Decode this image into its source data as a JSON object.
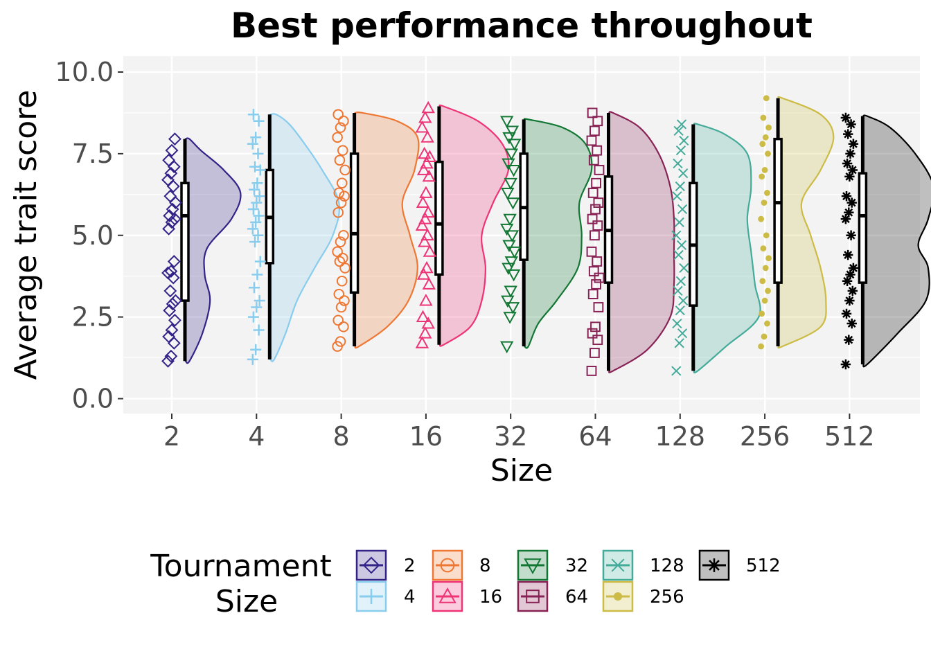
{
  "chart_data": {
    "type": "raincloud",
    "title": "Best performance throughout",
    "xlabel": "Size",
    "ylabel": "Average trait score",
    "ylim": [
      -0.4,
      10.5
    ],
    "yticks": [
      "0.0",
      "2.5",
      "5.0",
      "7.5",
      "10.0"
    ],
    "ytick_values": [
      0,
      2.5,
      5,
      7.5,
      10
    ],
    "grid": true,
    "legend": {
      "title_lines": [
        "Tournament",
        "Size"
      ],
      "placement": "bottom"
    },
    "categories": [
      "2",
      "4",
      "8",
      "16",
      "32",
      "64",
      "128",
      "256",
      "512"
    ],
    "series": [
      {
        "name": "2",
        "color": "#332288",
        "marker": "diamond",
        "min": 1.15,
        "q1": 3.0,
        "median": 5.6,
        "q3": 6.6,
        "max": 7.95,
        "density": [
          [
            1.15,
            0.05
          ],
          [
            2.0,
            0.22
          ],
          [
            3.0,
            0.32
          ],
          [
            3.8,
            0.25
          ],
          [
            4.6,
            0.28
          ],
          [
            5.5,
            0.6
          ],
          [
            6.3,
            0.72
          ],
          [
            7.0,
            0.5
          ],
          [
            7.6,
            0.2
          ],
          [
            7.95,
            0.05
          ]
        ],
        "points": [
          1.15,
          1.3,
          1.7,
          1.9,
          2.1,
          2.4,
          2.7,
          2.9,
          3.0,
          3.3,
          3.7,
          3.85,
          3.9,
          4.2,
          5.2,
          5.4,
          5.5,
          5.6,
          5.8,
          6.0,
          6.2,
          6.5,
          6.7,
          6.9,
          7.1,
          7.3,
          7.6,
          7.95
        ]
      },
      {
        "name": "4",
        "color": "#88CCEE",
        "marker": "plus",
        "min": 1.2,
        "q1": 4.15,
        "median": 5.55,
        "q3": 7.0,
        "max": 8.7,
        "density": [
          [
            1.2,
            0.05
          ],
          [
            2.0,
            0.2
          ],
          [
            3.0,
            0.35
          ],
          [
            4.0,
            0.58
          ],
          [
            5.0,
            0.82
          ],
          [
            6.0,
            0.9
          ],
          [
            7.0,
            0.68
          ],
          [
            7.8,
            0.45
          ],
          [
            8.4,
            0.25
          ],
          [
            8.7,
            0.08
          ]
        ],
        "points": [
          1.2,
          1.5,
          2.1,
          2.5,
          2.8,
          3.0,
          3.4,
          3.8,
          4.2,
          4.8,
          5.0,
          5.2,
          5.4,
          5.6,
          5.8,
          6.0,
          6.2,
          6.4,
          6.6,
          7.0,
          7.1,
          7.5,
          7.8,
          8.0,
          8.5,
          8.7
        ]
      },
      {
        "name": "8",
        "color": "#EE7733",
        "marker": "circle",
        "min": 1.6,
        "q1": 3.25,
        "median": 5.05,
        "q3": 7.5,
        "max": 8.75,
        "density": [
          [
            1.6,
            0.05
          ],
          [
            2.2,
            0.42
          ],
          [
            3.0,
            0.7
          ],
          [
            4.0,
            0.82
          ],
          [
            5.0,
            0.72
          ],
          [
            6.0,
            0.62
          ],
          [
            7.0,
            0.78
          ],
          [
            8.0,
            0.82
          ],
          [
            8.5,
            0.55
          ],
          [
            8.75,
            0.1
          ]
        ],
        "points": [
          1.6,
          1.75,
          2.2,
          2.4,
          2.8,
          3.0,
          3.2,
          3.6,
          4.0,
          4.2,
          4.3,
          4.5,
          4.8,
          5.0,
          5.7,
          6.0,
          6.2,
          6.3,
          6.6,
          7.0,
          7.3,
          7.6,
          8.0,
          8.3,
          8.5,
          8.7
        ]
      },
      {
        "name": "16",
        "color": "#EE3377",
        "marker": "triangle",
        "min": 1.65,
        "q1": 3.8,
        "median": 5.35,
        "q3": 7.25,
        "max": 8.95,
        "density": [
          [
            1.65,
            0.05
          ],
          [
            2.2,
            0.4
          ],
          [
            3.0,
            0.55
          ],
          [
            4.0,
            0.6
          ],
          [
            5.0,
            0.55
          ],
          [
            6.0,
            0.7
          ],
          [
            7.0,
            0.9
          ],
          [
            7.8,
            0.82
          ],
          [
            8.5,
            0.5
          ],
          [
            8.95,
            0.05
          ]
        ],
        "points": [
          1.7,
          2.0,
          2.3,
          2.5,
          3.0,
          3.5,
          3.8,
          4.0,
          4.5,
          4.8,
          5.0,
          5.3,
          5.5,
          5.7,
          6.0,
          6.3,
          6.8,
          7.0,
          7.2,
          7.4,
          7.5,
          8.0,
          8.3,
          8.6,
          8.9
        ]
      },
      {
        "name": "32",
        "color": "#117733",
        "marker": "triangle-down",
        "min": 1.6,
        "q1": 4.25,
        "median": 5.85,
        "q3": 7.5,
        "max": 8.55,
        "density": [
          [
            1.6,
            0.05
          ],
          [
            2.3,
            0.18
          ],
          [
            3.0,
            0.42
          ],
          [
            4.0,
            0.7
          ],
          [
            5.0,
            0.75
          ],
          [
            6.0,
            0.72
          ],
          [
            7.0,
            0.88
          ],
          [
            7.8,
            0.8
          ],
          [
            8.3,
            0.5
          ],
          [
            8.55,
            0.05
          ]
        ],
        "points": [
          1.6,
          2.5,
          2.8,
          3.0,
          3.3,
          3.8,
          4.0,
          4.2,
          4.5,
          4.7,
          5.0,
          5.2,
          5.5,
          6.0,
          6.3,
          6.6,
          7.0,
          7.2,
          7.5,
          7.8,
          8.0,
          8.2,
          8.5
        ]
      },
      {
        "name": "64",
        "color": "#882255",
        "marker": "square",
        "min": 0.85,
        "q1": 3.55,
        "median": 5.15,
        "q3": 6.8,
        "max": 8.75,
        "density": [
          [
            0.85,
            0.05
          ],
          [
            1.5,
            0.5
          ],
          [
            2.5,
            0.8
          ],
          [
            3.5,
            0.85
          ],
          [
            4.5,
            0.85
          ],
          [
            5.5,
            0.85
          ],
          [
            6.5,
            0.8
          ],
          [
            7.5,
            0.65
          ],
          [
            8.3,
            0.4
          ],
          [
            8.75,
            0.05
          ]
        ],
        "points": [
          0.85,
          1.4,
          1.8,
          2.0,
          2.2,
          2.8,
          3.2,
          3.5,
          3.7,
          3.9,
          4.2,
          4.5,
          5.0,
          5.3,
          5.5,
          5.8,
          6.0,
          6.3,
          6.6,
          7.0,
          7.3,
          7.6,
          7.9,
          8.2,
          8.5,
          8.75
        ]
      },
      {
        "name": "128",
        "color": "#44AA99",
        "marker": "cross",
        "min": 0.85,
        "q1": 2.85,
        "median": 4.7,
        "q3": 6.6,
        "max": 8.4,
        "density": [
          [
            0.85,
            0.05
          ],
          [
            1.6,
            0.42
          ],
          [
            2.5,
            0.85
          ],
          [
            3.5,
            0.8
          ],
          [
            4.5,
            0.75
          ],
          [
            5.5,
            0.7
          ],
          [
            6.5,
            0.75
          ],
          [
            7.5,
            0.7
          ],
          [
            8.1,
            0.4
          ],
          [
            8.4,
            0.05
          ]
        ],
        "points": [
          0.85,
          1.7,
          2.0,
          2.3,
          2.7,
          3.0,
          3.3,
          3.6,
          4.0,
          4.4,
          4.7,
          5.0,
          5.4,
          5.8,
          6.2,
          6.5,
          6.9,
          7.2,
          7.6,
          7.9,
          8.2,
          8.4
        ]
      },
      {
        "name": "256",
        "color": "#CCBB44",
        "marker": "dot",
        "min": 1.6,
        "q1": 3.55,
        "median": 6.0,
        "q3": 7.95,
        "max": 9.2,
        "density": [
          [
            1.6,
            0.05
          ],
          [
            2.2,
            0.55
          ],
          [
            3.0,
            0.62
          ],
          [
            4.0,
            0.55
          ],
          [
            5.0,
            0.42
          ],
          [
            6.0,
            0.3
          ],
          [
            7.0,
            0.55
          ],
          [
            8.0,
            0.72
          ],
          [
            8.7,
            0.55
          ],
          [
            9.2,
            0.05
          ]
        ],
        "points": [
          1.6,
          1.9,
          2.3,
          2.6,
          3.0,
          3.3,
          3.6,
          4.0,
          4.3,
          4.6,
          5.0,
          5.5,
          6.0,
          6.3,
          6.8,
          7.0,
          7.5,
          7.8,
          8.0,
          8.3,
          8.6,
          9.2
        ]
      },
      {
        "name": "512",
        "color": "#000000",
        "marker": "star",
        "min": 1.05,
        "q1": 3.55,
        "median": 5.6,
        "q3": 6.9,
        "max": 8.65,
        "density": [
          [
            1.05,
            0.05
          ],
          [
            2.0,
            0.45
          ],
          [
            3.0,
            0.82
          ],
          [
            4.0,
            0.85
          ],
          [
            4.7,
            0.72
          ],
          [
            5.5,
            0.85
          ],
          [
            6.5,
            0.92
          ],
          [
            7.5,
            0.68
          ],
          [
            8.3,
            0.35
          ],
          [
            8.65,
            0.05
          ]
        ],
        "points": [
          1.05,
          1.8,
          2.3,
          2.6,
          3.0,
          3.3,
          3.6,
          3.8,
          4.0,
          4.4,
          5.0,
          5.5,
          5.7,
          6.0,
          6.2,
          6.8,
          7.0,
          7.2,
          7.5,
          7.8,
          8.1,
          8.4,
          8.6
        ]
      }
    ]
  }
}
